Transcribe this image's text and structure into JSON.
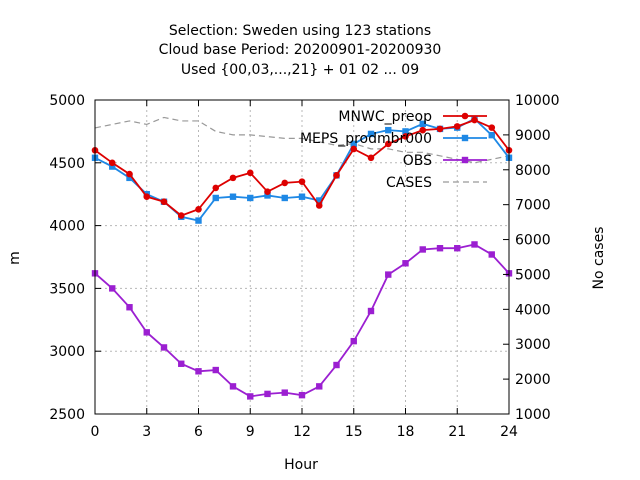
{
  "chart_data": {
    "type": "line",
    "title_lines": [
      "Selection: Sweden using   123 stations",
      "Cloud base   Period: 20200901-20200930",
      "Used {00,03,...,21} + 01 02 ... 09"
    ],
    "xlabel": "Hour",
    "ylabel": "m",
    "y2label": "No cases",
    "xlim": [
      0,
      24
    ],
    "ylim": [
      2500,
      5000
    ],
    "y2lim": [
      1000,
      10000
    ],
    "x_ticks": [
      "0",
      "3",
      "6",
      "9",
      "12",
      "15",
      "18",
      "21",
      "24"
    ],
    "y_ticks": [
      "2500",
      "3000",
      "3500",
      "4000",
      "4500",
      "5000"
    ],
    "y2_ticks": [
      "1000",
      "2000",
      "3000",
      "4000",
      "5000",
      "6000",
      "7000",
      "8000",
      "9000",
      "10000"
    ],
    "grid": true,
    "legend_position": "top-right",
    "x": [
      0,
      1,
      2,
      3,
      4,
      5,
      6,
      7,
      8,
      9,
      10,
      11,
      12,
      13,
      14,
      15,
      16,
      17,
      18,
      19,
      20,
      21,
      22,
      23,
      24
    ],
    "series": [
      {
        "name": "MNWC_preop",
        "color": "#dd0000",
        "marker": "circle",
        "axis": "y",
        "values": [
          4600,
          4500,
          4410,
          4230,
          4190,
          4080,
          4130,
          4300,
          4380,
          4420,
          4270,
          4340,
          4350,
          4160,
          4400,
          4610,
          4540,
          4650,
          4710,
          4760,
          4770,
          4790,
          4840,
          4780,
          4600
        ]
      },
      {
        "name": "MEPS_prodmbr000",
        "color": "#1e88e5",
        "marker": "square",
        "axis": "y",
        "values": [
          4540,
          4470,
          4380,
          4250,
          4190,
          4070,
          4040,
          4220,
          4230,
          4220,
          4240,
          4220,
          4230,
          4200,
          4400,
          4650,
          4730,
          4760,
          4750,
          4810,
          4770,
          4780,
          4850,
          4720,
          4540
        ]
      },
      {
        "name": "OBS",
        "color": "#9b1fd1",
        "marker": "square",
        "axis": "y",
        "values": [
          3620,
          3500,
          3350,
          3150,
          3030,
          2900,
          2840,
          2850,
          2720,
          2640,
          2660,
          2670,
          2650,
          2720,
          2890,
          3080,
          3320,
          3610,
          3700,
          3810,
          3820,
          3820,
          3850,
          3770,
          3620
        ]
      },
      {
        "name": "CASES",
        "color": "#999999",
        "marker": "none",
        "dash": true,
        "axis": "y2",
        "values": [
          9200,
          9300,
          9400,
          9300,
          9500,
          9400,
          9400,
          9100,
          9000,
          9000,
          8950,
          8900,
          8900,
          8800,
          8700,
          8750,
          8600,
          8600,
          8500,
          8500,
          8400,
          8300,
          8200,
          8300,
          8400
        ]
      }
    ]
  }
}
